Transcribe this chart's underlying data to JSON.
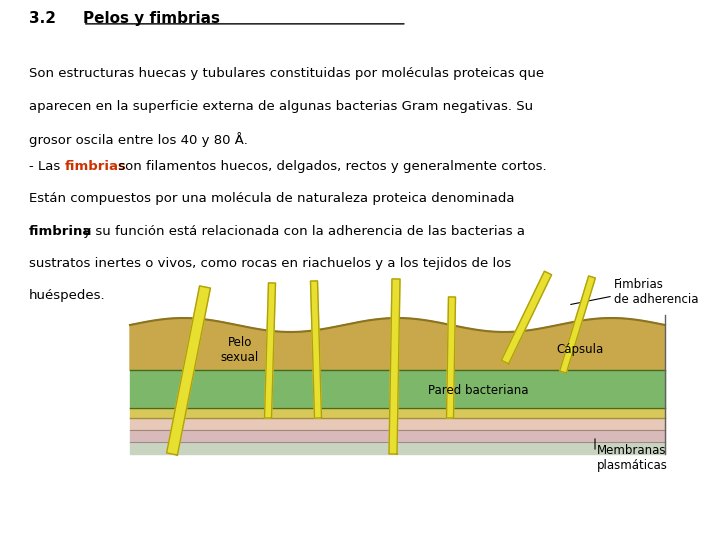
{
  "bg_color": "#ffffff",
  "title_prefix": "3.2  ",
  "title_underline": "Pelos y fimbrias",
  "para1_line1": "Son estructuras huecas y tubulares constituidas por moléculas proteicas que",
  "para1_line2": "aparecen en la superficie externa de algunas bacterias Gram negativas. Su",
  "para1_line3": "grosor oscila entre los 40 y 80 Å.",
  "fimbrias_color": "#cc3300",
  "capsula_color": "#c8a84b",
  "pared_color": "#7db86a",
  "thin_layer_color": "#d8c85a",
  "membrane1_color": "#e8c8b8",
  "membrane2_color": "#d8baba",
  "bot_color": "#c8d4c0",
  "stick_color": "#e8e030",
  "stick_edge": "#b0a010",
  "label_fimbrias": "Fimbrias\nde adherencia",
  "label_pelo": "Pelo\nsexual",
  "label_capsula": "Cápsula",
  "label_pared": "Pared bacteriana",
  "label_membranas": "Membranas\nplasmáticas"
}
